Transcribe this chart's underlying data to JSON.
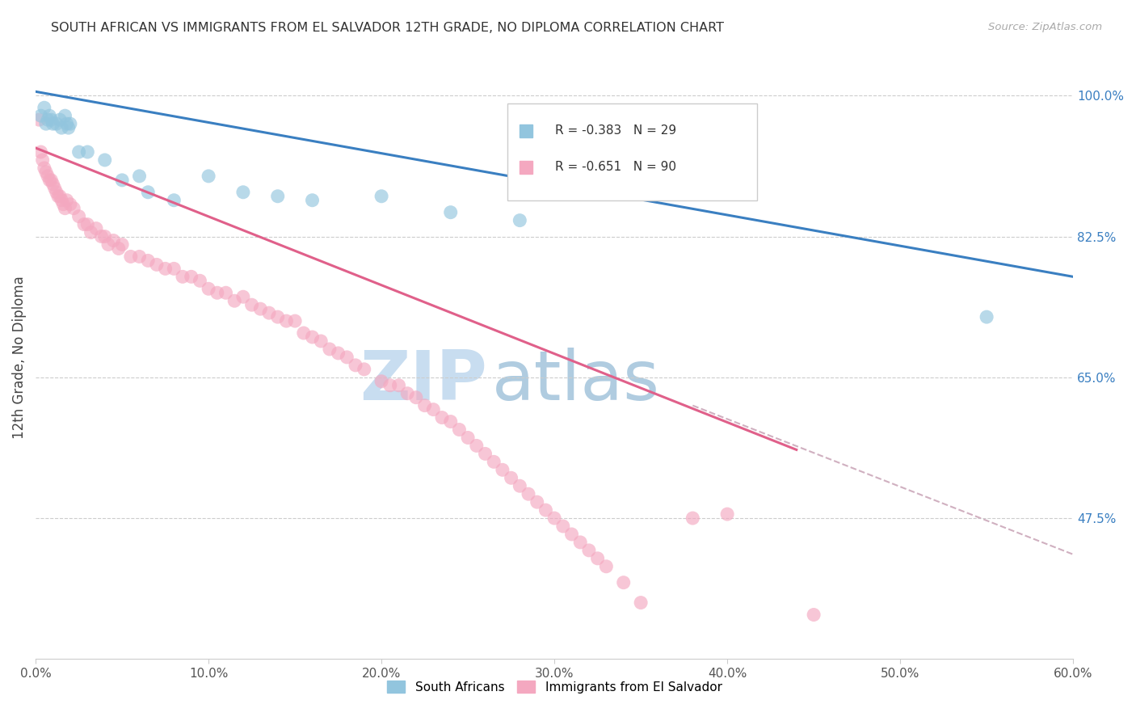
{
  "title": "SOUTH AFRICAN VS IMMIGRANTS FROM EL SALVADOR 12TH GRADE, NO DIPLOMA CORRELATION CHART",
  "source": "Source: ZipAtlas.com",
  "ylabel": "12th Grade, No Diploma",
  "xlabel_ticks": [
    "0.0%",
    "10.0%",
    "20.0%",
    "30.0%",
    "40.0%",
    "50.0%",
    "60.0%"
  ],
  "xlabel_vals": [
    0.0,
    0.1,
    0.2,
    0.3,
    0.4,
    0.5,
    0.6
  ],
  "ylabel_ticks": [
    "100.0%",
    "82.5%",
    "65.0%",
    "47.5%"
  ],
  "ylabel_vals": [
    1.0,
    0.825,
    0.65,
    0.475
  ],
  "xmin": 0.0,
  "xmax": 0.6,
  "ymin": 0.3,
  "ymax": 1.05,
  "legend_blue_R": "-0.383",
  "legend_blue_N": "29",
  "legend_pink_R": "-0.651",
  "legend_pink_N": "90",
  "blue_color": "#92c5de",
  "pink_color": "#f4a8c0",
  "blue_line_color": "#3a7fc1",
  "pink_line_color": "#e0608a",
  "dashed_line_color": "#d0b0c0",
  "background_color": "#ffffff",
  "watermark_zip": "ZIP",
  "watermark_atlas": "atlas",
  "watermark_color_zip": "#c8ddf0",
  "watermark_color_atlas": "#b0cce0",
  "blue_line_x0": 0.0,
  "blue_line_y0": 1.005,
  "blue_line_x1": 0.6,
  "blue_line_y1": 0.775,
  "pink_line_x0": 0.0,
  "pink_line_y0": 0.935,
  "pink_line_x1": 0.44,
  "pink_line_y1": 0.56,
  "dashed_line_x0": 0.38,
  "dashed_line_y0": 0.615,
  "dashed_line_x1": 0.6,
  "dashed_line_y1": 0.43,
  "blue_scatter_x": [
    0.003,
    0.005,
    0.006,
    0.007,
    0.008,
    0.009,
    0.01,
    0.012,
    0.014,
    0.015,
    0.017,
    0.018,
    0.019,
    0.02,
    0.025,
    0.03,
    0.04,
    0.05,
    0.06,
    0.065,
    0.08,
    0.1,
    0.12,
    0.14,
    0.16,
    0.2,
    0.24,
    0.28,
    0.55
  ],
  "blue_scatter_y": [
    0.975,
    0.985,
    0.965,
    0.97,
    0.975,
    0.97,
    0.965,
    0.965,
    0.97,
    0.96,
    0.975,
    0.965,
    0.96,
    0.965,
    0.93,
    0.93,
    0.92,
    0.895,
    0.9,
    0.88,
    0.87,
    0.9,
    0.88,
    0.875,
    0.87,
    0.875,
    0.855,
    0.845,
    0.725
  ],
  "pink_scatter_x": [
    0.002,
    0.003,
    0.004,
    0.005,
    0.006,
    0.007,
    0.008,
    0.009,
    0.01,
    0.011,
    0.012,
    0.013,
    0.014,
    0.015,
    0.016,
    0.017,
    0.018,
    0.02,
    0.022,
    0.025,
    0.028,
    0.03,
    0.032,
    0.035,
    0.038,
    0.04,
    0.042,
    0.045,
    0.048,
    0.05,
    0.055,
    0.06,
    0.065,
    0.07,
    0.075,
    0.08,
    0.085,
    0.09,
    0.095,
    0.1,
    0.105,
    0.11,
    0.115,
    0.12,
    0.125,
    0.13,
    0.135,
    0.14,
    0.145,
    0.15,
    0.155,
    0.16,
    0.165,
    0.17,
    0.175,
    0.18,
    0.185,
    0.19,
    0.2,
    0.205,
    0.21,
    0.215,
    0.22,
    0.225,
    0.23,
    0.235,
    0.24,
    0.245,
    0.25,
    0.255,
    0.26,
    0.265,
    0.27,
    0.275,
    0.28,
    0.285,
    0.29,
    0.295,
    0.3,
    0.305,
    0.31,
    0.315,
    0.32,
    0.325,
    0.33,
    0.34,
    0.35,
    0.38,
    0.4,
    0.45
  ],
  "pink_scatter_y": [
    0.97,
    0.93,
    0.92,
    0.91,
    0.905,
    0.9,
    0.895,
    0.895,
    0.89,
    0.885,
    0.88,
    0.875,
    0.875,
    0.87,
    0.865,
    0.86,
    0.87,
    0.865,
    0.86,
    0.85,
    0.84,
    0.84,
    0.83,
    0.835,
    0.825,
    0.825,
    0.815,
    0.82,
    0.81,
    0.815,
    0.8,
    0.8,
    0.795,
    0.79,
    0.785,
    0.785,
    0.775,
    0.775,
    0.77,
    0.76,
    0.755,
    0.755,
    0.745,
    0.75,
    0.74,
    0.735,
    0.73,
    0.725,
    0.72,
    0.72,
    0.705,
    0.7,
    0.695,
    0.685,
    0.68,
    0.675,
    0.665,
    0.66,
    0.645,
    0.64,
    0.64,
    0.63,
    0.625,
    0.615,
    0.61,
    0.6,
    0.595,
    0.585,
    0.575,
    0.565,
    0.555,
    0.545,
    0.535,
    0.525,
    0.515,
    0.505,
    0.495,
    0.485,
    0.475,
    0.465,
    0.455,
    0.445,
    0.435,
    0.425,
    0.415,
    0.395,
    0.37,
    0.475,
    0.48,
    0.355
  ]
}
